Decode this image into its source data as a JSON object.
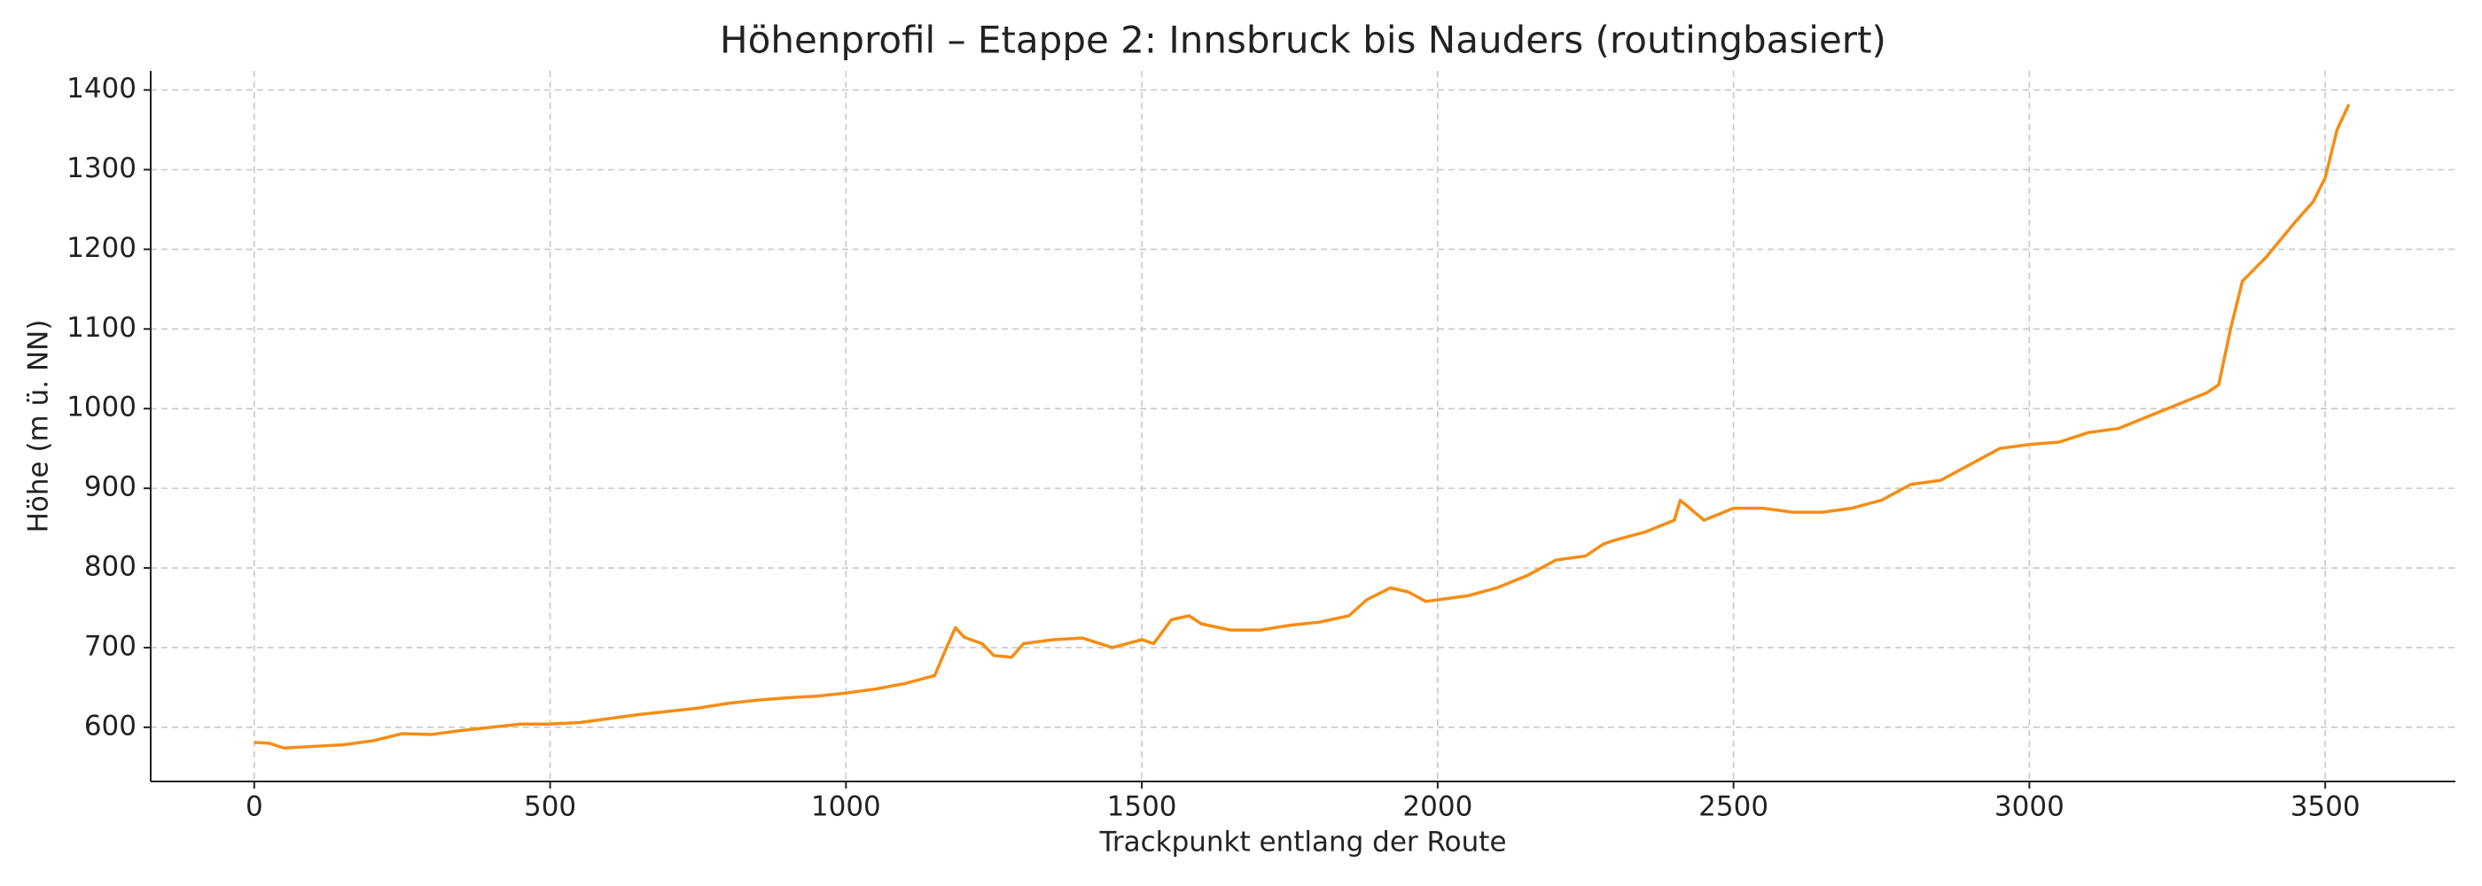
{
  "chart_data": {
    "type": "line",
    "title": "Höhenprofil – Etappe 2: Innsbruck bis Nauders (routingbasiert)",
    "x_label": "Trackpunkt entlang der Route",
    "y_label": "Höhe (m ü. NN)",
    "x": [
      0,
      25,
      50,
      100,
      150,
      200,
      250,
      300,
      350,
      400,
      450,
      500,
      550,
      600,
      650,
      700,
      750,
      800,
      850,
      900,
      950,
      1000,
      1050,
      1100,
      1150,
      1170,
      1185,
      1200,
      1230,
      1250,
      1280,
      1300,
      1350,
      1400,
      1450,
      1500,
      1520,
      1550,
      1580,
      1600,
      1650,
      1700,
      1750,
      1800,
      1850,
      1880,
      1920,
      1950,
      1980,
      2000,
      2050,
      2100,
      2150,
      2200,
      2250,
      2280,
      2300,
      2350,
      2400,
      2410,
      2450,
      2500,
      2550,
      2600,
      2650,
      2700,
      2750,
      2800,
      2850,
      2900,
      2950,
      3000,
      3050,
      3100,
      3150,
      3200,
      3250,
      3300,
      3320,
      3340,
      3360,
      3400,
      3450,
      3480,
      3500,
      3520,
      3540
    ],
    "series": [
      {
        "name": "Höhe",
        "color": "#f58d14",
        "values": [
          581,
          580,
          574,
          576,
          578,
          583,
          592,
          591,
          596,
          600,
          604,
          604,
          606,
          611,
          616,
          620,
          624,
          630,
          634,
          637,
          639,
          643,
          648,
          655,
          665,
          700,
          725,
          713,
          705,
          690,
          688,
          705,
          710,
          712,
          700,
          710,
          705,
          735,
          740,
          730,
          722,
          722,
          728,
          732,
          740,
          760,
          775,
          770,
          758,
          760,
          765,
          775,
          790,
          810,
          815,
          830,
          835,
          845,
          860,
          885,
          860,
          875,
          875,
          870,
          870,
          875,
          885,
          905,
          910,
          930,
          950,
          955,
          958,
          970,
          975,
          990,
          1005,
          1020,
          1030,
          1100,
          1160,
          1190,
          1235,
          1260,
          1290,
          1350,
          1382
        ]
      }
    ],
    "xlim": [
      -175,
      3720
    ],
    "ylim": [
      532,
      1424
    ],
    "xticks": [
      0,
      500,
      1000,
      1500,
      2000,
      2500,
      3000,
      3500
    ],
    "yticks": [
      600,
      700,
      800,
      900,
      1000,
      1100,
      1200,
      1300,
      1400
    ],
    "grid": true
  }
}
